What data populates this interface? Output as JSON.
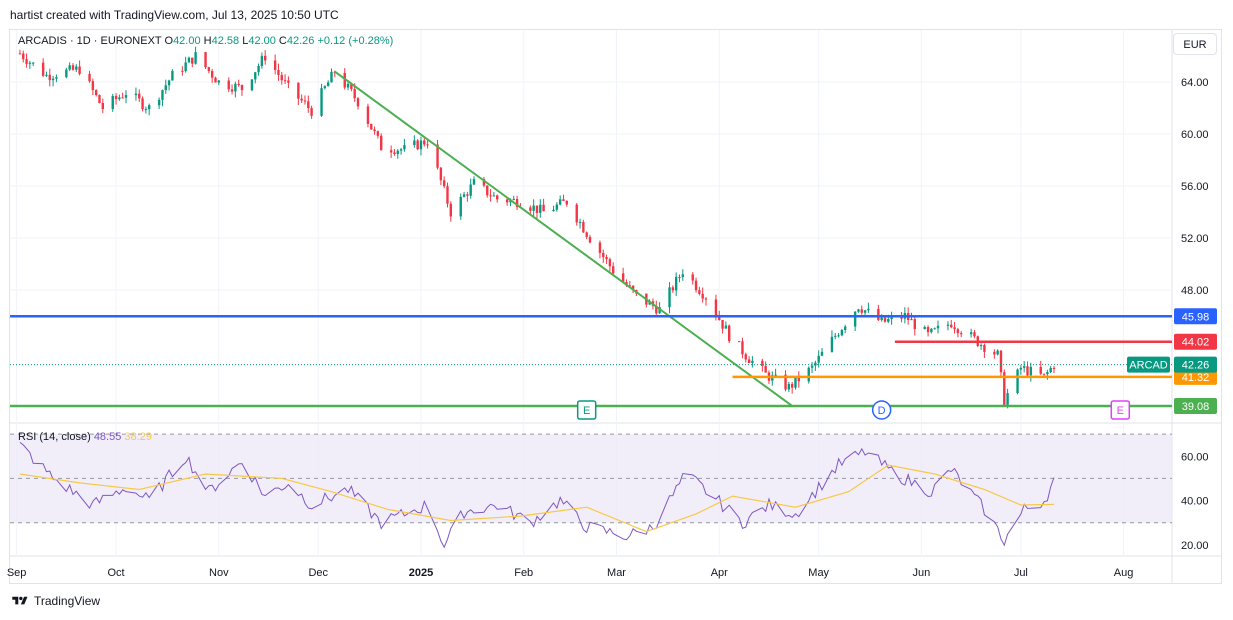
{
  "header": {
    "text": "hartist created with TradingView.com, Jul 13, 2025 10:50 UTC"
  },
  "legend": {
    "symbol": "ARCADIS · 1D · EURONEXT",
    "o_label": "O",
    "o": "42.00",
    "h_label": "H",
    "h": "42.58",
    "l_label": "L",
    "l": "42.00",
    "c_label": "C",
    "c": "42.26",
    "change": "+0.12 (+0.28%)"
  },
  "currency": "EUR",
  "rsi_legend": {
    "name": "RSI (14, close)",
    "rsi": "48.55",
    "ma": "38.29"
  },
  "footer": {
    "brand": "TradingView"
  },
  "colors": {
    "up": "#089981",
    "down": "#f23645",
    "trend": "#4caf50",
    "blue": "#2962ff",
    "red": "#f23645",
    "orange": "#ff9800",
    "green_line": "#4caf50",
    "rsi": "#7e57c2",
    "rsi_ma": "#f7c948",
    "rsi_band": "#ede7f6"
  },
  "chart_data": {
    "type": "candlestick",
    "y_axis_ticks": [
      "64.00",
      "60.00",
      "56.00",
      "52.00",
      "48.00"
    ],
    "ylim": [
      38.0,
      68.0
    ],
    "x_axis_labels": [
      "Sep",
      "Oct",
      "Nov",
      "Dec",
      "2025",
      "Feb",
      "Mar",
      "Apr",
      "May",
      "Jun",
      "Jul",
      "Aug"
    ],
    "close_path": [
      {
        "d": "2024-09-02",
        "c": 66.2
      },
      {
        "d": "2024-09-10",
        "c": 64.5
      },
      {
        "d": "2024-09-20",
        "c": 65.0
      },
      {
        "d": "2024-09-27",
        "c": 62.0
      },
      {
        "d": "2024-10-04",
        "c": 63.2
      },
      {
        "d": "2024-10-11",
        "c": 62.0
      },
      {
        "d": "2024-10-18",
        "c": 64.5
      },
      {
        "d": "2024-10-25",
        "c": 66.0
      },
      {
        "d": "2024-11-01",
        "c": 64.0
      },
      {
        "d": "2024-11-08",
        "c": 63.5
      },
      {
        "d": "2024-11-15",
        "c": 66.0
      },
      {
        "d": "2024-11-22",
        "c": 63.5
      },
      {
        "d": "2024-11-29",
        "c": 61.8
      },
      {
        "d": "2024-12-06",
        "c": 64.8
      },
      {
        "d": "2024-12-13",
        "c": 62.5
      },
      {
        "d": "2024-12-20",
        "c": 59.0
      },
      {
        "d": "2024-12-27",
        "c": 58.8
      },
      {
        "d": "2025-01-03",
        "c": 59.5
      },
      {
        "d": "2025-01-10",
        "c": 54.0
      },
      {
        "d": "2025-01-17",
        "c": 56.2
      },
      {
        "d": "2025-01-24",
        "c": 55.0
      },
      {
        "d": "2025-01-31",
        "c": 54.8
      },
      {
        "d": "2025-02-07",
        "c": 54.0
      },
      {
        "d": "2025-02-14",
        "c": 54.8
      },
      {
        "d": "2025-02-21",
        "c": 52.0
      },
      {
        "d": "2025-02-28",
        "c": 49.5
      },
      {
        "d": "2025-03-07",
        "c": 47.5
      },
      {
        "d": "2025-03-14",
        "c": 46.5
      },
      {
        "d": "2025-03-21",
        "c": 49.5
      },
      {
        "d": "2025-03-28",
        "c": 47.5
      },
      {
        "d": "2025-04-04",
        "c": 44.5
      },
      {
        "d": "2025-04-09",
        "c": 43.0
      },
      {
        "d": "2025-04-15",
        "c": 41.5
      },
      {
        "d": "2025-04-22",
        "c": 40.5
      },
      {
        "d": "2025-04-29",
        "c": 42.0
      },
      {
        "d": "2025-05-06",
        "c": 44.5
      },
      {
        "d": "2025-05-13",
        "c": 46.8
      },
      {
        "d": "2025-05-20",
        "c": 45.5
      },
      {
        "d": "2025-05-27",
        "c": 46.0
      },
      {
        "d": "2025-06-03",
        "c": 44.5
      },
      {
        "d": "2025-06-10",
        "c": 45.5
      },
      {
        "d": "2025-06-17",
        "c": 44.2
      },
      {
        "d": "2025-06-24",
        "c": 43.0
      },
      {
        "d": "2025-06-26",
        "c": 39.5
      },
      {
        "d": "2025-07-01",
        "c": 42.0
      },
      {
        "d": "2025-07-08",
        "c": 41.3
      },
      {
        "d": "2025-07-11",
        "c": 42.26
      }
    ],
    "horizontal_lines": [
      {
        "label": "45.98",
        "value": 45.98,
        "color": "#2962ff"
      },
      {
        "label": "44.02",
        "value": 44.02,
        "color": "#f23645"
      },
      {
        "label": "41.32",
        "value": 41.32,
        "color": "#ff9800"
      },
      {
        "label": "39.08",
        "value": 39.08,
        "color": "#4caf50"
      }
    ],
    "last_price": {
      "symbol": "ARCAD",
      "value": "42.26"
    },
    "trendline": [
      {
        "d": "2024-12-06",
        "v": 64.8
      },
      {
        "d": "2025-04-23",
        "v": 39.08
      }
    ],
    "event_markers": [
      {
        "label": "E",
        "d": "2025-02-20",
        "color": "#089981"
      },
      {
        "label": "D",
        "d": "2025-05-20",
        "color": "#2962ff"
      },
      {
        "label": "E",
        "d": "2025-07-31",
        "color": "#e040fb"
      }
    ],
    "rsi": {
      "y_axis_ticks": [
        "60.00",
        "40.00",
        "20.00"
      ],
      "ylim": [
        15,
        75
      ],
      "bands": [
        30,
        50,
        70
      ],
      "series": [
        {
          "d": "2024-09-02",
          "v": 65
        },
        {
          "d": "2024-09-12",
          "v": 50
        },
        {
          "d": "2024-09-24",
          "v": 38
        },
        {
          "d": "2024-10-04",
          "v": 46
        },
        {
          "d": "2024-10-11",
          "v": 40
        },
        {
          "d": "2024-10-22",
          "v": 60
        },
        {
          "d": "2024-10-29",
          "v": 44
        },
        {
          "d": "2024-11-08",
          "v": 58
        },
        {
          "d": "2024-11-15",
          "v": 42
        },
        {
          "d": "2024-11-22",
          "v": 48
        },
        {
          "d": "2024-11-29",
          "v": 38
        },
        {
          "d": "2024-12-10",
          "v": 45
        },
        {
          "d": "2024-12-20",
          "v": 30
        },
        {
          "d": "2025-01-03",
          "v": 38
        },
        {
          "d": "2025-01-08",
          "v": 20
        },
        {
          "d": "2025-01-14",
          "v": 35
        },
        {
          "d": "2025-01-24",
          "v": 38
        },
        {
          "d": "2025-02-03",
          "v": 30
        },
        {
          "d": "2025-02-12",
          "v": 40
        },
        {
          "d": "2025-02-20",
          "v": 28
        },
        {
          "d": "2025-03-04",
          "v": 24
        },
        {
          "d": "2025-03-12",
          "v": 28
        },
        {
          "d": "2025-03-22",
          "v": 52
        },
        {
          "d": "2025-03-30",
          "v": 42
        },
        {
          "d": "2025-04-08",
          "v": 30
        },
        {
          "d": "2025-04-16",
          "v": 38
        },
        {
          "d": "2025-04-24",
          "v": 34
        },
        {
          "d": "2025-05-07",
          "v": 56
        },
        {
          "d": "2025-05-15",
          "v": 62
        },
        {
          "d": "2025-05-24",
          "v": 52
        },
        {
          "d": "2025-06-04",
          "v": 44
        },
        {
          "d": "2025-06-10",
          "v": 54
        },
        {
          "d": "2025-06-20",
          "v": 36
        },
        {
          "d": "2025-06-26",
          "v": 22
        },
        {
          "d": "2025-07-02",
          "v": 36
        },
        {
          "d": "2025-07-08",
          "v": 40
        },
        {
          "d": "2025-07-11",
          "v": 48.55
        }
      ],
      "ma": [
        {
          "d": "2024-09-02",
          "v": 52
        },
        {
          "d": "2024-09-20",
          "v": 48
        },
        {
          "d": "2024-10-08",
          "v": 45
        },
        {
          "d": "2024-10-28",
          "v": 52
        },
        {
          "d": "2024-11-20",
          "v": 50
        },
        {
          "d": "2024-12-05",
          "v": 44
        },
        {
          "d": "2024-12-22",
          "v": 36
        },
        {
          "d": "2025-01-10",
          "v": 31
        },
        {
          "d": "2025-01-31",
          "v": 33
        },
        {
          "d": "2025-02-20",
          "v": 37
        },
        {
          "d": "2025-03-10",
          "v": 26
        },
        {
          "d": "2025-03-25",
          "v": 34
        },
        {
          "d": "2025-04-05",
          "v": 42
        },
        {
          "d": "2025-04-24",
          "v": 37
        },
        {
          "d": "2025-05-10",
          "v": 44
        },
        {
          "d": "2025-05-22",
          "v": 56
        },
        {
          "d": "2025-06-05",
          "v": 52
        },
        {
          "d": "2025-06-20",
          "v": 45
        },
        {
          "d": "2025-07-01",
          "v": 38
        },
        {
          "d": "2025-07-11",
          "v": 38.29
        }
      ]
    }
  }
}
